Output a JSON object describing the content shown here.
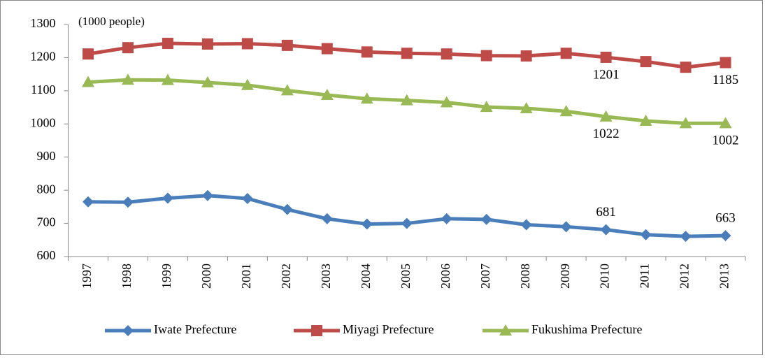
{
  "chart_data": {
    "type": "line",
    "y_unit_label": "(1000 people)",
    "categories": [
      "1997",
      "1998",
      "1999",
      "2000",
      "2001",
      "2002",
      "2003",
      "2004",
      "2005",
      "2006",
      "2007",
      "2008",
      "2009",
      "2010",
      "2011",
      "2012",
      "2013"
    ],
    "series": [
      {
        "name": "Iwate Prefecture",
        "color": "#4a7ebb",
        "marker": "diamond",
        "values": [
          765,
          764,
          776,
          784,
          775,
          742,
          714,
          698,
          700,
          714,
          712,
          696,
          690,
          681,
          666,
          661,
          663
        ],
        "value_labels": [
          null,
          null,
          null,
          null,
          null,
          null,
          null,
          null,
          null,
          null,
          null,
          null,
          null,
          "681",
          null,
          null,
          "663"
        ]
      },
      {
        "name": "Miyagi Prefecture",
        "color": "#be4b48",
        "marker": "square",
        "values": [
          1211,
          1230,
          1243,
          1241,
          1242,
          1237,
          1227,
          1217,
          1213,
          1211,
          1206,
          1205,
          1213,
          1201,
          1188,
          1171,
          1185
        ],
        "value_labels": [
          null,
          null,
          null,
          null,
          null,
          null,
          null,
          null,
          null,
          null,
          null,
          null,
          null,
          "1201",
          null,
          null,
          "1185"
        ]
      },
      {
        "name": "Fukushima Prefecture",
        "color": "#98b954",
        "marker": "triangle",
        "values": [
          1126,
          1133,
          1132,
          1125,
          1117,
          1101,
          1087,
          1076,
          1071,
          1065,
          1051,
          1047,
          1038,
          1022,
          1009,
          1002,
          1002
        ],
        "value_labels": [
          null,
          null,
          null,
          null,
          null,
          null,
          null,
          null,
          null,
          null,
          null,
          null,
          null,
          "1022",
          null,
          null,
          "1002"
        ]
      }
    ],
    "ylim": [
      600,
      1300
    ],
    "yticks": [
      600,
      700,
      800,
      900,
      1000,
      1100,
      1200,
      1300
    ],
    "grid": false,
    "legend": "bottom"
  }
}
